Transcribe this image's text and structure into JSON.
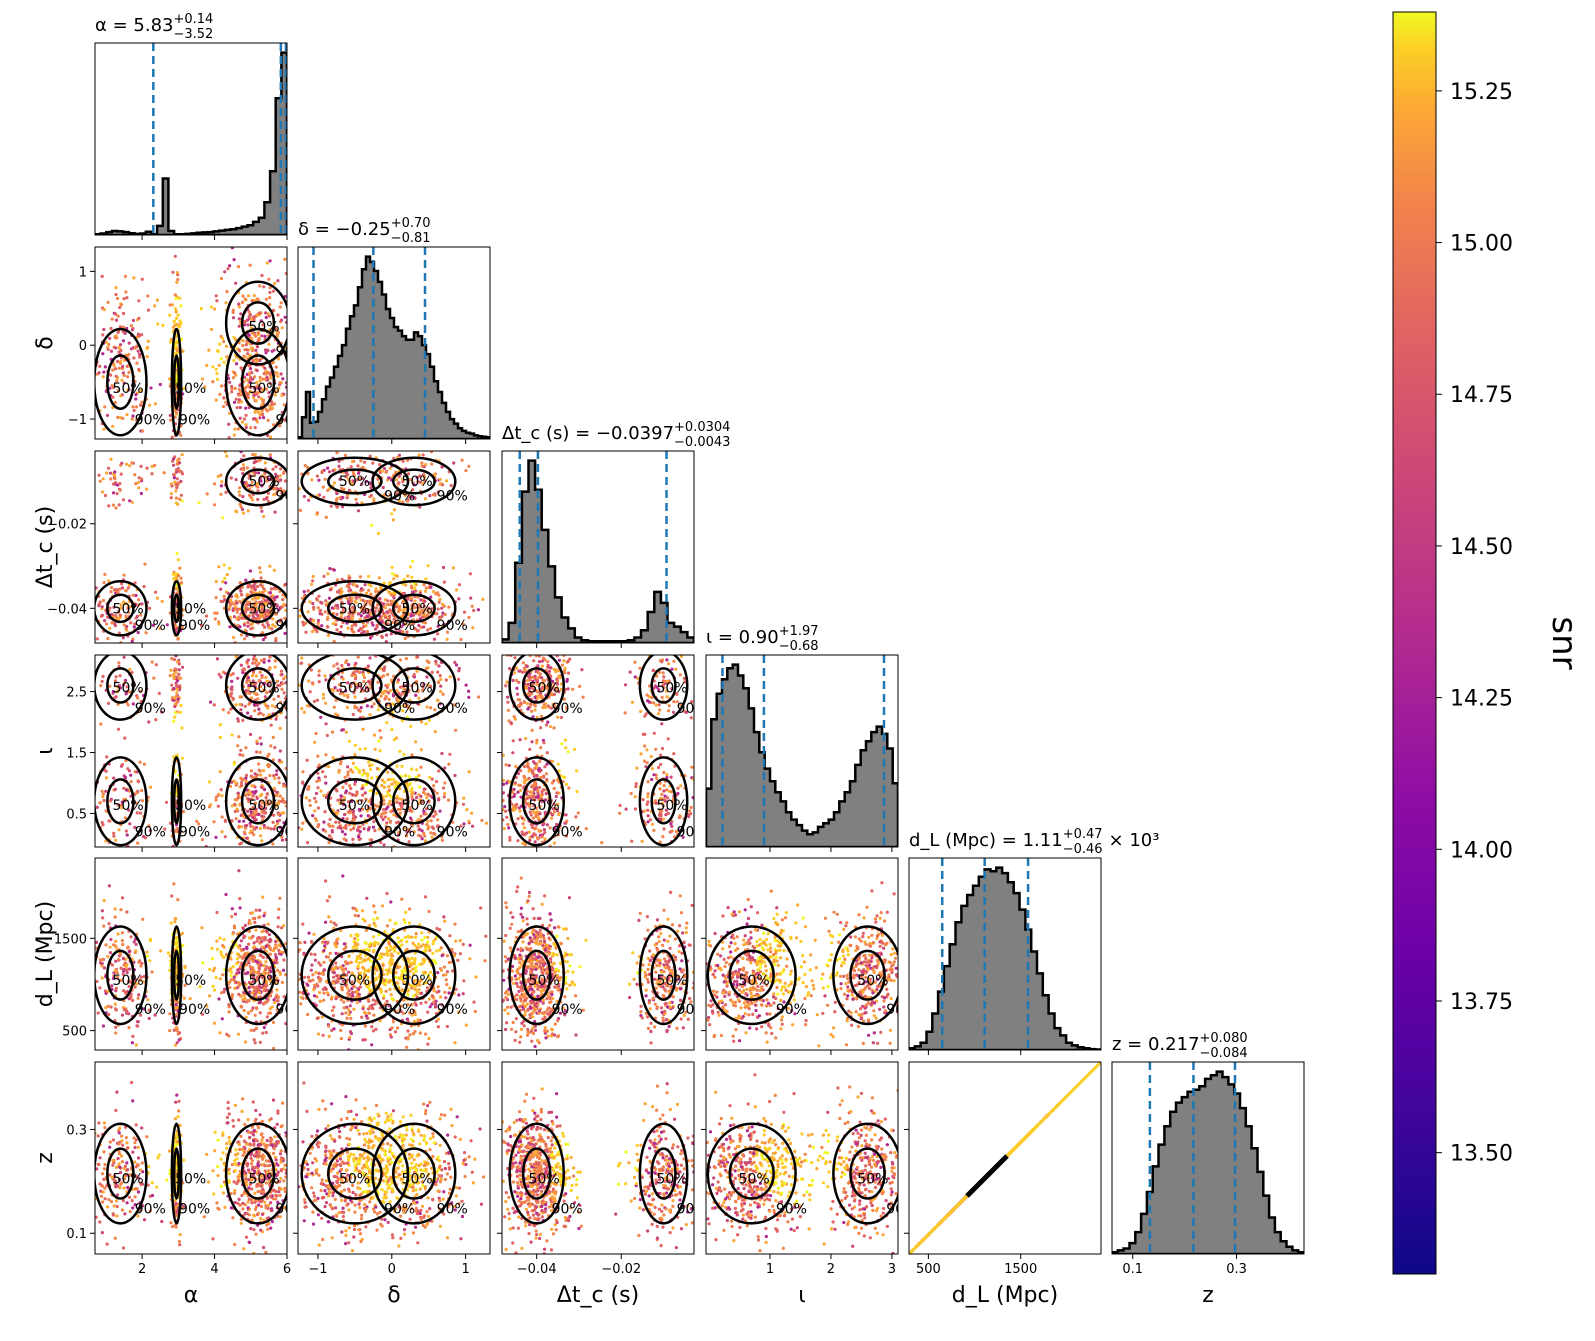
{
  "chart_data": {
    "type": "scatter",
    "parameters": [
      {
        "key": "alpha",
        "label": "α",
        "range": [
          0.7,
          6.0
        ],
        "ticks": [
          {
            "v": 2,
            "t": "2"
          },
          {
            "v": 4,
            "t": "4"
          },
          {
            "v": 6,
            "t": "6"
          }
        ],
        "title_name": "α",
        "title_value": "5.83",
        "title_upper": "+0.14",
        "title_lower": "−3.52",
        "title_suffix": "",
        "quantiles": [
          2.31,
          5.83,
          5.97
        ]
      },
      {
        "key": "delta",
        "label": "δ",
        "range": [
          -1.27,
          1.33
        ],
        "ticks": [
          {
            "v": -1,
            "t": "−1"
          },
          {
            "v": 0,
            "t": "0"
          },
          {
            "v": 1,
            "t": "1"
          }
        ],
        "title_name": "δ",
        "title_value": "−0.25",
        "title_upper": "+0.70",
        "title_lower": "−0.81",
        "title_suffix": "",
        "quantiles": [
          -1.06,
          -0.25,
          0.45
        ]
      },
      {
        "key": "dtc",
        "label": "Δt_c (s)",
        "range": [
          -0.0482,
          -0.0028
        ],
        "ticks": [
          {
            "v": -0.04,
            "t": "−0.04"
          },
          {
            "v": -0.02,
            "t": "−0.02"
          }
        ],
        "title_name": "Δt_c (s)",
        "title_value": "−0.0397",
        "title_upper": "+0.0304",
        "title_lower": "−0.0043",
        "title_suffix": "",
        "quantiles": [
          -0.044,
          -0.0397,
          -0.0093
        ]
      },
      {
        "key": "iota",
        "label": "ι",
        "range": [
          -0.05,
          3.1
        ],
        "ticks": [
          {
            "v": 1,
            "t": "1"
          },
          {
            "v": 2,
            "t": "2"
          },
          {
            "v": 3,
            "t": "3"
          }
        ],
        "ticks_y": [
          {
            "v": 0.5,
            "t": "0.5"
          },
          {
            "v": 1.5,
            "t": "1.5"
          },
          {
            "v": 2.5,
            "t": "2.5"
          }
        ],
        "title_name": "ι",
        "title_value": "0.90",
        "title_upper": "+1.97",
        "title_lower": "−0.68",
        "title_suffix": "",
        "quantiles": [
          0.22,
          0.9,
          2.87
        ]
      },
      {
        "key": "dL",
        "label": "d_L (Mpc)",
        "range": [
          290,
          2370
        ],
        "ticks": [
          {
            "v": 500,
            "t": "500"
          },
          {
            "v": 1500,
            "t": "1500"
          }
        ],
        "title_name": "d_L (Mpc)",
        "title_value": "1.11",
        "title_upper": "+0.47",
        "title_lower": "−0.46",
        "title_suffix": "× 10³",
        "quantiles": [
          650,
          1110,
          1580
        ]
      },
      {
        "key": "z",
        "label": "z",
        "range": [
          0.06,
          0.43
        ],
        "ticks": [
          {
            "v": 0.1,
            "t": "0.1"
          },
          {
            "v": 0.3,
            "t": "0.3"
          }
        ],
        "title_name": "z",
        "title_value": "0.217",
        "title_upper": "+0.080",
        "title_lower": "−0.084",
        "title_suffix": "",
        "quantiles": [
          0.133,
          0.217,
          0.297
        ]
      }
    ],
    "hist": {
      "alpha": [
        0.4,
        0.8,
        1.6,
        2.2,
        2.0,
        1.6,
        1.0,
        0.6,
        0.8,
        1.8,
        0.4,
        5.0,
        31.0,
        2.2,
        0.4,
        0.4,
        0.6,
        0.9,
        1.2,
        1.4,
        1.6,
        2.0,
        2.4,
        2.8,
        3.2,
        3.8,
        4.6,
        5.4,
        7.2,
        9.5,
        18.0,
        35.0,
        75.0,
        100.0
      ],
      "delta": [
        1.0,
        12.0,
        26.0,
        9.0,
        9.5,
        15.0,
        22.0,
        29.0,
        34.0,
        40.0,
        46.0,
        52.0,
        61.0,
        68.0,
        74.0,
        84.0,
        94.0,
        101.0,
        98.0,
        93.0,
        87.0,
        80.0,
        72.0,
        67.0,
        62.0,
        60.0,
        57.0,
        55.0,
        55.0,
        59.0,
        57.0,
        52.0,
        47.0,
        40.0,
        32.0,
        26.0,
        20.0,
        15.0,
        11.0,
        8.5,
        6.0,
        4.5,
        3.5,
        3.0,
        2.0,
        1.5,
        1.2,
        1.0
      ],
      "dtc": [
        2.0,
        11.0,
        44.0,
        83.0,
        100.0,
        84.0,
        62.0,
        42.0,
        25.0,
        14.0,
        8.0,
        3.0,
        1.5,
        1.0,
        1.0,
        1.0,
        1.0,
        1.0,
        1.0,
        1.5,
        3.0,
        7.0,
        17.0,
        28.0,
        22.0,
        11.0,
        9.0,
        6.0,
        3.0
      ],
      "iota": [
        32.0,
        70.0,
        84.0,
        92.0,
        98.0,
        100.0,
        94.0,
        87.0,
        76.0,
        63.0,
        52.0,
        43.0,
        36.0,
        30.0,
        25.0,
        19.0,
        15.0,
        12.0,
        9.0,
        7.0,
        8.0,
        11.0,
        13.0,
        15.0,
        19.0,
        25.0,
        30.0,
        36.0,
        45.0,
        53.0,
        58.0,
        63.0,
        66.0,
        62.0,
        54.0,
        35.0
      ],
      "dL": [
        1.0,
        2.0,
        4.0,
        10.0,
        20.0,
        32.0,
        46.0,
        58.0,
        70.0,
        79.0,
        85.0,
        90.0,
        95.0,
        99.0,
        98.0,
        100.0,
        97.0,
        92.0,
        86.0,
        77.0,
        66.0,
        54.0,
        42.0,
        30.0,
        20.0,
        12.0,
        8.0,
        4.0,
        2.5,
        1.5,
        1.0,
        0.5,
        0.3
      ],
      "z": [
        1.0,
        2.0,
        3.0,
        6.0,
        12.0,
        22.0,
        34.0,
        48.0,
        60.0,
        70.0,
        78.0,
        83.0,
        86.0,
        89.0,
        90.0,
        92.0,
        96.0,
        98.0,
        100.0,
        97.0,
        93.0,
        88.0,
        80.0,
        70.0,
        58.0,
        45.0,
        32.0,
        20.0,
        12.0,
        7.0,
        4.0,
        2.0,
        1.0
      ]
    },
    "contour_labels": [
      "50%",
      "90%"
    ],
    "colorbar": {
      "label": "snr",
      "vmin": 13.3,
      "vmax": 15.38,
      "cmap": "plasma",
      "ticks": [
        "13.50",
        "13.75",
        "14.00",
        "14.25",
        "14.50",
        "14.75",
        "15.00",
        "15.25"
      ]
    },
    "colors": {
      "hist_fill": "#808080",
      "quantile_line": "#1f77b4",
      "contour": "#000000"
    }
  }
}
